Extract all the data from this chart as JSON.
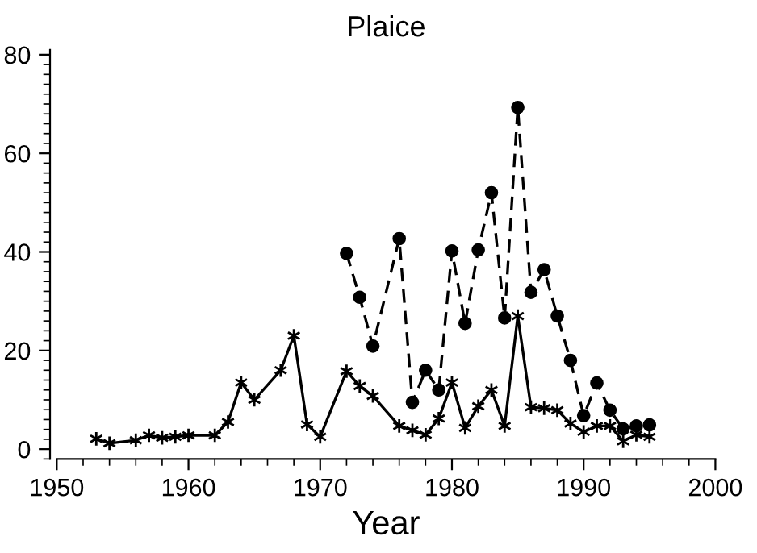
{
  "chart_data": {
    "type": "line",
    "title": "Plaice",
    "xlabel": "Year",
    "xlim": [
      1950,
      2000
    ],
    "xticks": [
      1950,
      1960,
      1970,
      1980,
      1990,
      2000
    ],
    "ylim": [
      -2,
      81
    ],
    "yticks": [
      0,
      20,
      40,
      60,
      80
    ],
    "grid": false,
    "series": [
      {
        "color": "#000000",
        "marker": "cross",
        "line_style": "solid",
        "x": [
          1953,
          1954,
          1956,
          1957,
          1958,
          1959,
          1960,
          1962,
          1963,
          1964,
          1965,
          1967,
          1968,
          1969,
          1970,
          1972,
          1973,
          1974,
          1976,
          1977,
          1978,
          1979,
          1980,
          1981,
          1982,
          1983,
          1984,
          1985,
          1986,
          1987,
          1988,
          1989,
          1990,
          1991,
          1992,
          1993,
          1994,
          1995
        ],
        "values": [
          2.1,
          1.2,
          1.8,
          2.8,
          2.3,
          2.5,
          2.8,
          2.8,
          5.5,
          13.5,
          10,
          16,
          23,
          5,
          2.5,
          15.8,
          12.8,
          10.8,
          4.7,
          3.8,
          2.9,
          6.2,
          13.5,
          4.3,
          8.7,
          12,
          4.7,
          27,
          8.5,
          8.3,
          7.9,
          5.2,
          3.5,
          4.7,
          4.7,
          1.6,
          2.9,
          2.5
        ]
      },
      {
        "color": "#000000",
        "marker": "circle",
        "line_style": "dashed",
        "x": [
          1972,
          1973,
          1974,
          1976,
          1977,
          1978,
          1979,
          1980,
          1981,
          1982,
          1983,
          1984,
          1985,
          1986,
          1987,
          1988,
          1989,
          1990,
          1991,
          1992,
          1993,
          1994,
          1995
        ],
        "values": [
          39.7,
          30.8,
          20.9,
          42.7,
          9.5,
          16,
          12,
          40.2,
          25.5,
          40.4,
          52,
          26.6,
          69.3,
          31.8,
          36.4,
          27,
          18,
          6.8,
          13.4,
          7.9,
          4.1,
          4.7,
          4.9
        ]
      }
    ]
  }
}
